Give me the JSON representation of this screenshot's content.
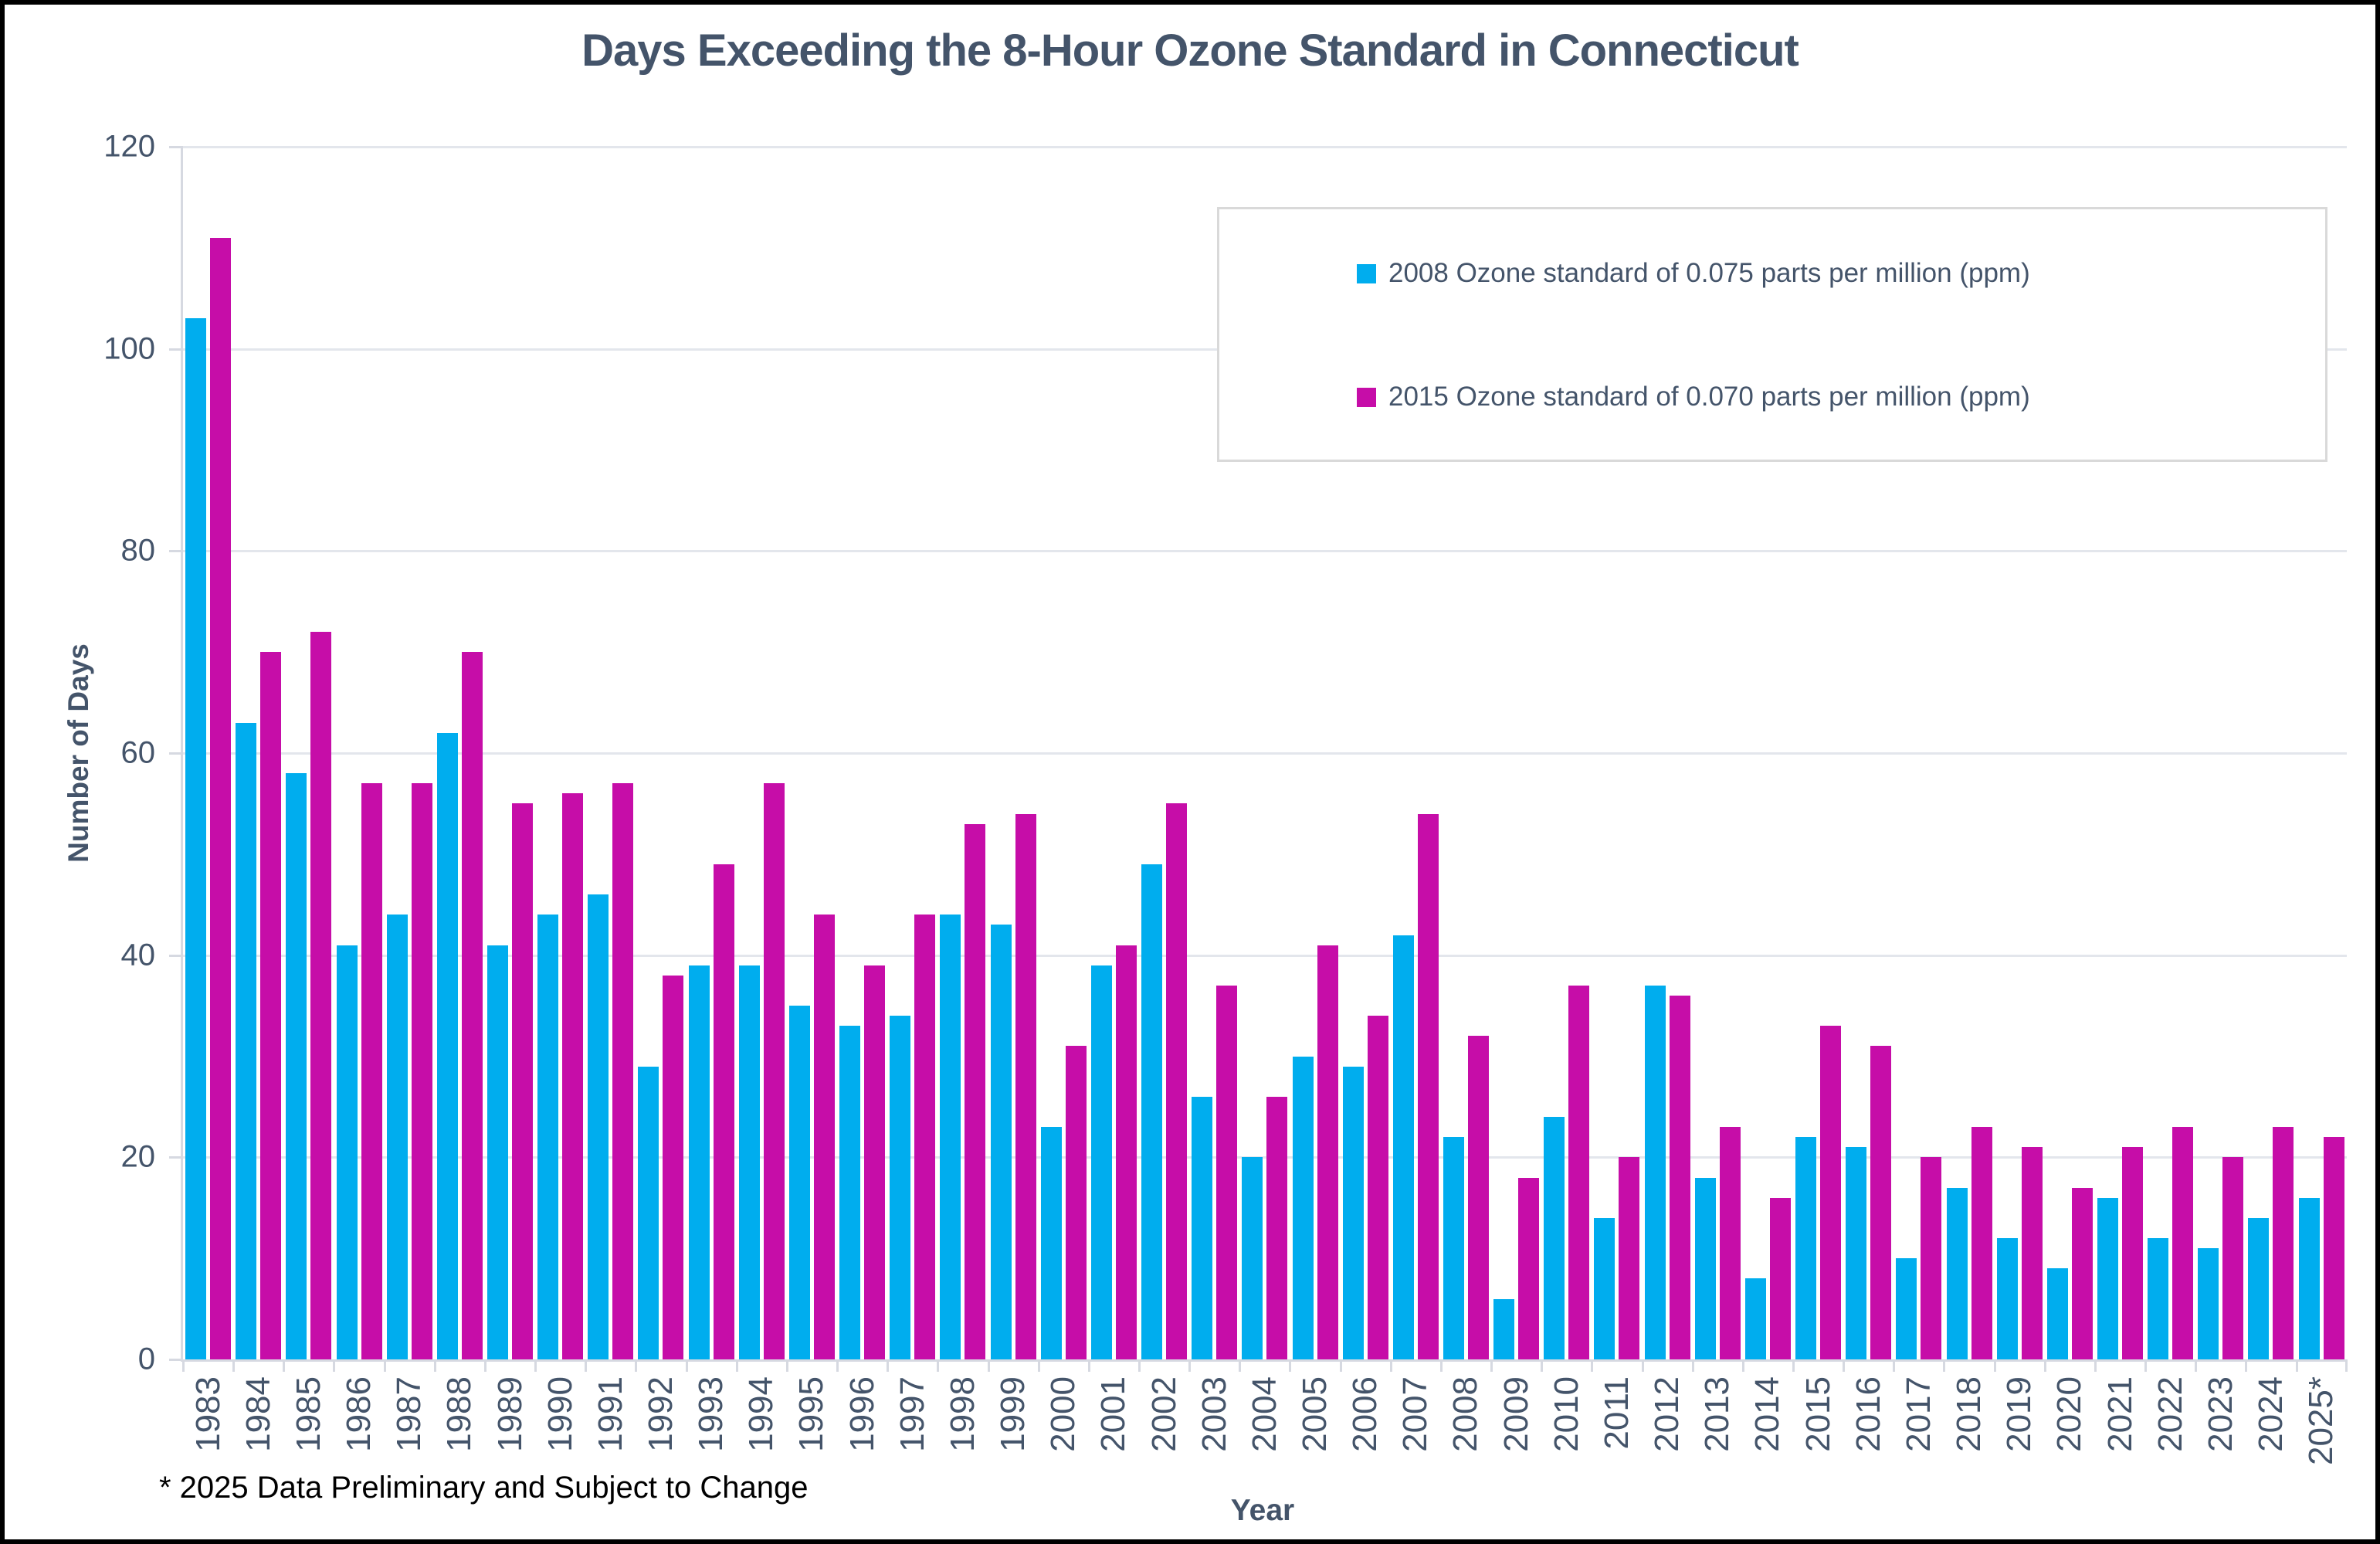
{
  "page": {
    "title": "Days Exceeding the 8-Hour Ozone Standard in Connecticut",
    "footnote": "* 2025 Data Preliminary and Subject to Change"
  },
  "chart_data": {
    "type": "bar",
    "title": "Days Exceeding the 8-Hour Ozone Standard in Connecticut",
    "xlabel": "Year",
    "ylabel": "Number of Days",
    "ylim": [
      0,
      120
    ],
    "yticks": [
      0,
      20,
      40,
      60,
      80,
      100,
      120
    ],
    "grid": true,
    "legend_position": "inside-top-right-box",
    "categories": [
      "1983",
      "1984",
      "1985",
      "1986",
      "1987",
      "1988",
      "1989",
      "1990",
      "1991",
      "1992",
      "1993",
      "1994",
      "1995",
      "1996",
      "1997",
      "1998",
      "1999",
      "2000",
      "2001",
      "2002",
      "2003",
      "2004",
      "2005",
      "2006",
      "2007",
      "2008",
      "2009",
      "2010",
      "2011",
      "2012",
      "2013",
      "2014",
      "2015",
      "2016",
      "2017",
      "2018",
      "2019",
      "2020",
      "2021",
      "2022",
      "2023",
      "2024",
      "2025*"
    ],
    "series": [
      {
        "name": "2008 Ozone standard of 0.075 parts per million (ppm)",
        "color": "#00ADEE",
        "values": [
          103,
          63,
          58,
          41,
          44,
          62,
          41,
          44,
          46,
          29,
          39,
          39,
          35,
          33,
          34,
          44,
          43,
          23,
          39,
          49,
          26,
          20,
          30,
          29,
          42,
          22,
          6,
          24,
          14,
          37,
          18,
          8,
          22,
          21,
          10,
          17,
          12,
          9,
          16,
          12,
          11,
          14,
          16
        ]
      },
      {
        "name": "2015 Ozone standard of 0.070 parts per million (ppm)",
        "color": "#C60DA8",
        "values": [
          111,
          70,
          72,
          57,
          57,
          70,
          55,
          56,
          57,
          38,
          49,
          57,
          44,
          39,
          44,
          53,
          54,
          31,
          41,
          55,
          37,
          26,
          41,
          34,
          54,
          32,
          18,
          37,
          20,
          36,
          23,
          16,
          33,
          31,
          20,
          23,
          21,
          17,
          21,
          23,
          20,
          23,
          22
        ]
      }
    ],
    "style": {
      "text_color": "#44546A",
      "grid_color": "#E3E6EC",
      "axis_color": "#D6D9E1",
      "legend_border_color": "#D9D9D9",
      "footnote_color": "#000000"
    }
  }
}
